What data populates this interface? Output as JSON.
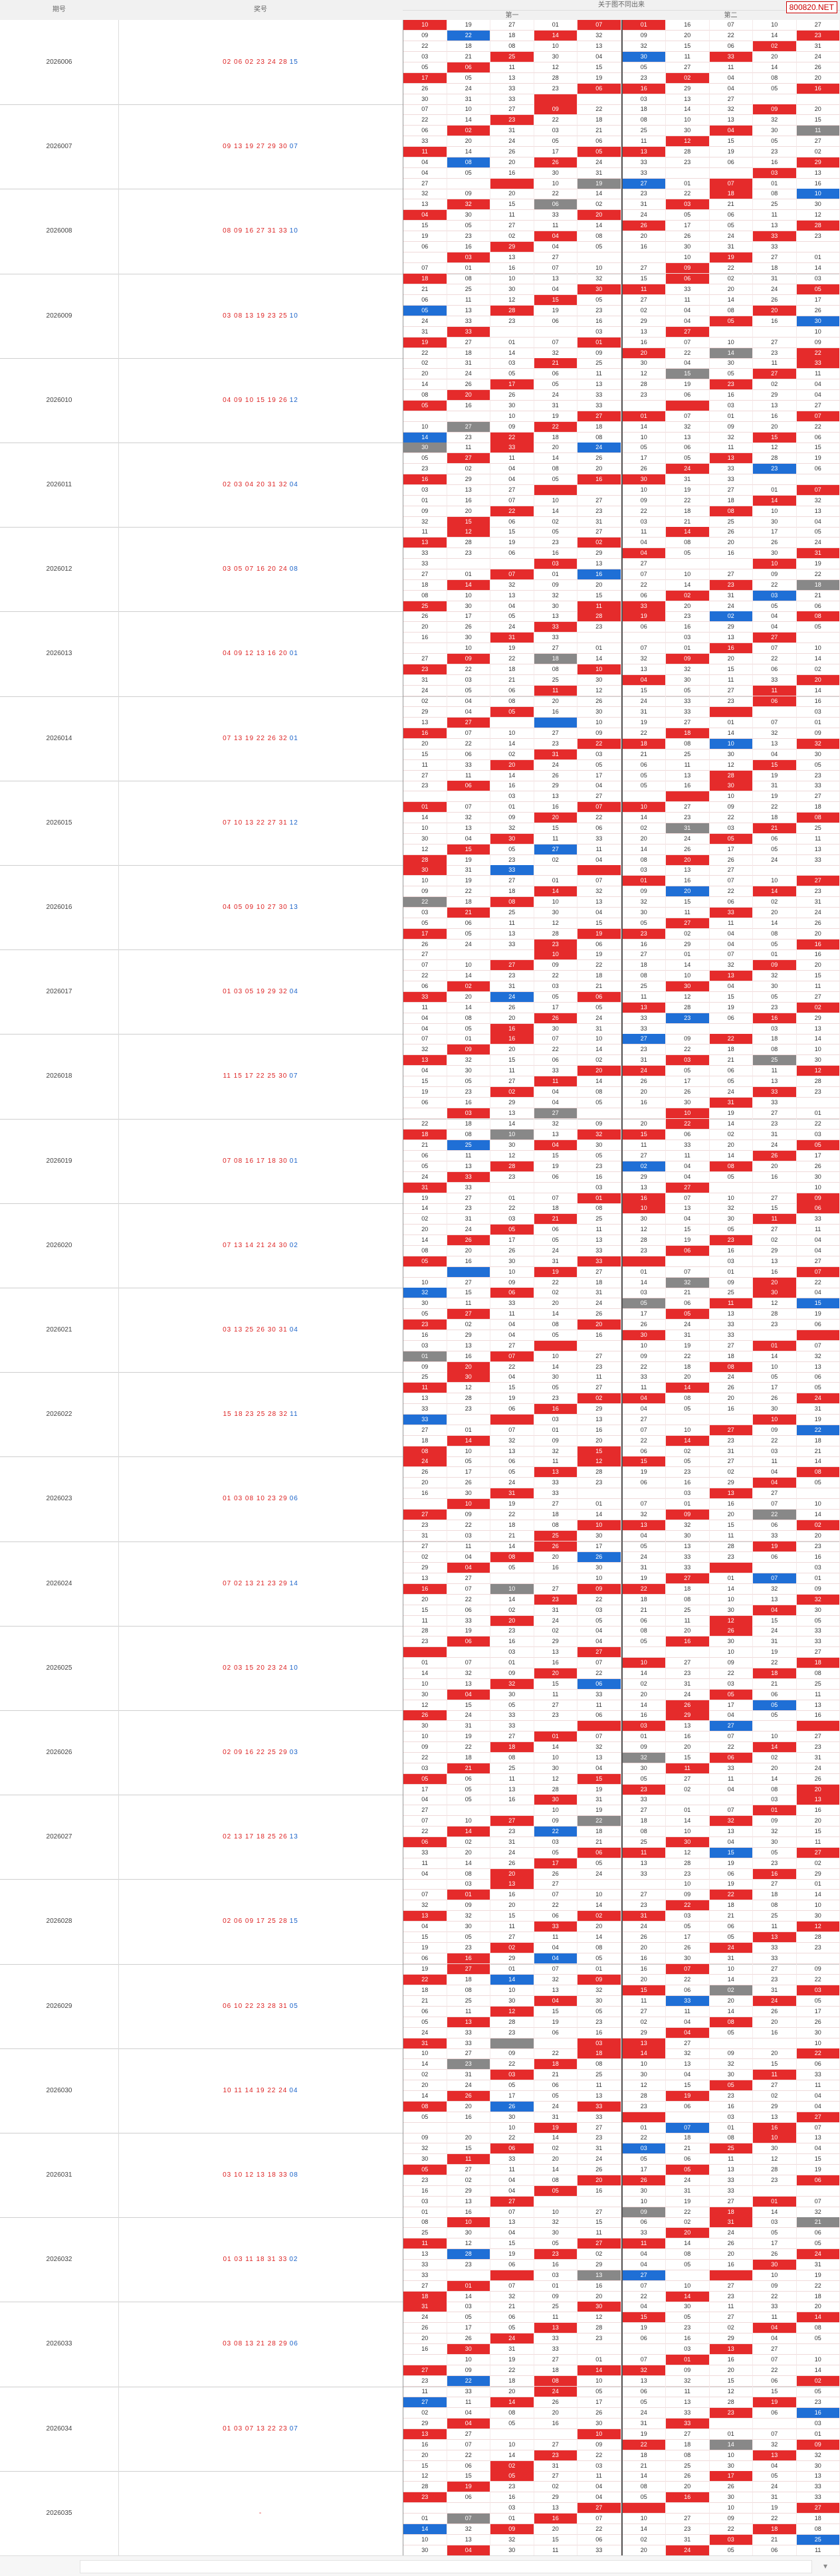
{
  "header": {
    "issue_label": "期号",
    "nums_label": "奖号",
    "grid_label": "关于图不同出来",
    "sub_a": "第一",
    "sub_b": "第二",
    "brand": "800820.NET"
  },
  "rows": [
    {
      "issue": "2026006",
      "red": "02 06 02 23 24 28",
      "blue": "15"
    },
    {
      "issue": "2026007",
      "red": "09 13 19 27 29 30",
      "blue": "07"
    },
    {
      "issue": "2026008",
      "red": "08 09 16 27 31 33",
      "blue": "10"
    },
    {
      "issue": "2026009",
      "red": "03 08 13 19 23 25",
      "blue": "10"
    },
    {
      "issue": "2026010",
      "red": "04 09 10 15 19 26",
      "blue": "12"
    },
    {
      "issue": "2026011",
      "red": "02 03 04 20 31 32",
      "blue": "04"
    },
    {
      "issue": "2026012",
      "red": "03 05 07 16 20 24",
      "blue": "08"
    },
    {
      "issue": "2026013",
      "red": "04 09 12 13 16 20",
      "blue": "01"
    },
    {
      "issue": "2026014",
      "red": "07 13 19 22 26 32",
      "blue": "01"
    },
    {
      "issue": "2026015",
      "red": "07 10 13 22 27 31",
      "blue": "12"
    },
    {
      "issue": "2026016",
      "red": "04 05 09 10 27 30",
      "blue": "13"
    },
    {
      "issue": "2026017",
      "red": "01 03 05 19 29 32",
      "blue": "04"
    },
    {
      "issue": "2026018",
      "red": "11 15 17 22 25 30",
      "blue": "07"
    },
    {
      "issue": "2026019",
      "red": "07 08 16 17 18 30",
      "blue": "01"
    },
    {
      "issue": "2026020",
      "red": "07 13 14 21 24 30",
      "blue": "02"
    },
    {
      "issue": "2026021",
      "red": "03 13 25 26 30 31",
      "blue": "04"
    },
    {
      "issue": "2026022",
      "red": "15 18 23 25 28 32",
      "blue": "11"
    },
    {
      "issue": "2026023",
      "red": "01 03 08 10 23 29",
      "blue": "06"
    },
    {
      "issue": "2026024",
      "red": "07 02 13 21 23 29",
      "blue": "14"
    },
    {
      "issue": "2026025",
      "red": "02 03 15 20 23 24",
      "blue": "10"
    },
    {
      "issue": "2026026",
      "red": "02 09 16 22 25 29",
      "blue": "03"
    },
    {
      "issue": "2026027",
      "red": "02 13 17 18 25 26",
      "blue": "13"
    },
    {
      "issue": "2026028",
      "red": "02 06 09 17 25 28",
      "blue": "15"
    },
    {
      "issue": "2026029",
      "red": "06 10 22 23 28 31",
      "blue": "05"
    },
    {
      "issue": "2026030",
      "red": "10 11 14 19 22 24",
      "blue": "04"
    },
    {
      "issue": "2026031",
      "red": "03 10 12 13 18 33",
      "blue": "08"
    },
    {
      "issue": "2026032",
      "red": "01 03 11 18 31 33",
      "blue": "02"
    },
    {
      "issue": "2026033",
      "red": "03 08 13 21 28 29",
      "blue": "06"
    },
    {
      "issue": "2026034",
      "red": "01 03 07 13 22 23",
      "blue": "07"
    },
    {
      "issue": "2026035",
      "red": "-",
      "blue": ""
    }
  ],
  "grid_values": [
    "10",
    "19",
    "27",
    "01",
    "07",
    "01",
    "16",
    "07",
    "10",
    "27",
    "09",
    "22",
    "18",
    "14",
    "32",
    "09",
    "20",
    "22",
    "14",
    "23",
    "22",
    "18",
    "08",
    "10",
    "13",
    "32",
    "15",
    "06",
    "02",
    "31",
    "03",
    "21",
    "25",
    "30",
    "04",
    "30",
    "11",
    "33",
    "20",
    "24",
    "05",
    "06",
    "11",
    "12",
    "15",
    "05",
    "27",
    "11",
    "14",
    "26",
    "17",
    "05",
    "13",
    "28",
    "19",
    "23",
    "02",
    "04",
    "08",
    "20",
    "26",
    "24",
    "33",
    "23",
    "06",
    "16",
    "29",
    "04",
    "05",
    "16",
    "30",
    "31",
    "33",
    "",
    "",
    "03",
    "13",
    "27",
    "",
    ""
  ],
  "palette": {
    "red": "#e52b2b",
    "blue": "#1f6fd6",
    "gray": "#888888"
  }
}
